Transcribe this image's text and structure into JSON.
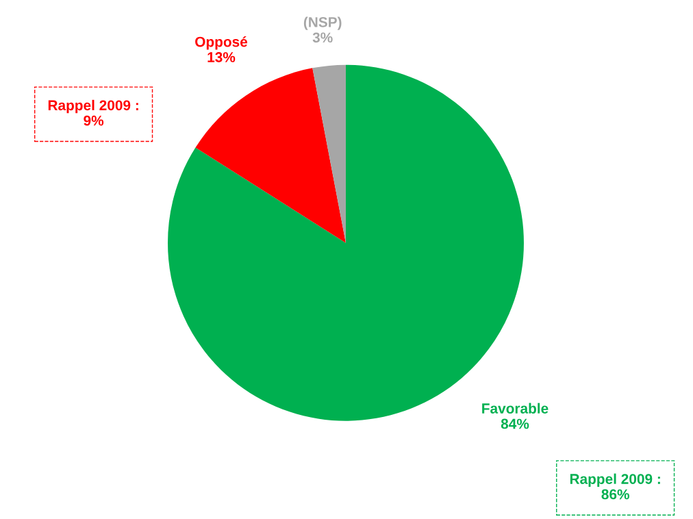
{
  "chart_data": {
    "type": "pie",
    "categories": [
      "Favorable",
      "Opposé",
      "(NSP)"
    ],
    "values": [
      84,
      13,
      3
    ],
    "colors": [
      "#00b050",
      "#ff0000",
      "#a6a6a6"
    ],
    "value_labels": [
      "84%",
      "13%",
      "3%"
    ],
    "annotations": [
      "Rappel 2009 :\n9%",
      "Rappel 2009 :\n86%"
    ]
  }
}
